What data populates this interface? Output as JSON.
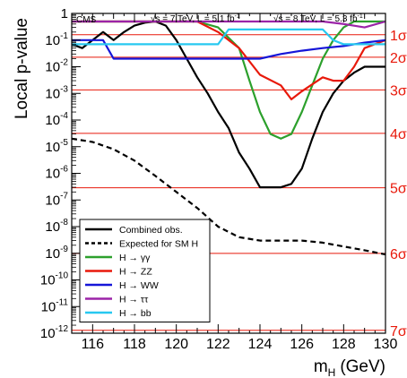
{
  "chart_data": {
    "type": "line",
    "header_left": "CMS",
    "header_7tev": "√s = 7 TeV, L = 5.1 fb",
    "header_8tev": "√s = 8 TeV, L = 5.3 fb",
    "header_sup": "-1",
    "xlabel_main": "m",
    "xlabel_sub": "H",
    "xlabel_unit": "(GeV)",
    "ylabel": "Local p-value",
    "xlim": [
      115,
      130
    ],
    "ylog": true,
    "ylim_exp": [
      -12,
      0
    ],
    "x_ticks": [
      116,
      118,
      120,
      122,
      124,
      126,
      128,
      130
    ],
    "y_ticks": [
      {
        "exp": 0,
        "label": "1"
      },
      {
        "exp": -1,
        "label": "10"
      },
      {
        "exp": -2,
        "label": "10"
      },
      {
        "exp": -3,
        "label": "10"
      },
      {
        "exp": -4,
        "label": "10"
      },
      {
        "exp": -5,
        "label": "10"
      },
      {
        "exp": -6,
        "label": "10"
      },
      {
        "exp": -7,
        "label": "10"
      },
      {
        "exp": -8,
        "label": "10"
      },
      {
        "exp": -9,
        "label": "10"
      },
      {
        "exp": -10,
        "label": "10"
      },
      {
        "exp": -11,
        "label": "10"
      },
      {
        "exp": -12,
        "label": "10"
      }
    ],
    "sigma_lines": [
      {
        "label": "1σ",
        "p": 0.1587
      },
      {
        "label": "2σ",
        "p": 0.02275
      },
      {
        "label": "3σ",
        "p": 0.00135
      },
      {
        "label": "4σ",
        "p": 3.17e-05
      },
      {
        "label": "5σ",
        "p": 2.87e-07
      },
      {
        "label": "6σ",
        "p": 9.87e-10
      },
      {
        "label": "7σ",
        "p": 1.28e-12
      }
    ],
    "legend_position": "bottom-left",
    "series": [
      {
        "name": "Combined obs.",
        "color": "#000000",
        "dash": "",
        "x": [
          115,
          115.5,
          116,
          116.5,
          117,
          117.5,
          118,
          118.5,
          119,
          119.5,
          120,
          120.5,
          121,
          121.5,
          122,
          122.5,
          123,
          123.5,
          124,
          124.5,
          125,
          125.5,
          126,
          126.5,
          127,
          127.5,
          128,
          128.5,
          129,
          129.5,
          130
        ],
        "y": [
          0.07,
          0.05,
          0.1,
          0.2,
          0.1,
          0.2,
          0.35,
          0.45,
          0.5,
          0.35,
          0.1,
          0.02,
          0.004,
          0.001,
          0.0002,
          5e-05,
          6e-06,
          1.5e-06,
          3e-07,
          3e-07,
          3e-07,
          4e-07,
          1.5e-06,
          2e-05,
          0.0002,
          0.001,
          0.003,
          0.006,
          0.01,
          0.01,
          0.01
        ]
      },
      {
        "name": "Expected for SM H",
        "color": "#000000",
        "dash": "6,4",
        "x": [
          115,
          116,
          117,
          118,
          119,
          120,
          121,
          122,
          123,
          124,
          125,
          126,
          127,
          128,
          129,
          130
        ],
        "y": [
          2e-05,
          1.5e-05,
          8e-06,
          3e-06,
          8e-07,
          2e-07,
          5e-08,
          1e-08,
          4e-09,
          3e-09,
          3e-09,
          3e-09,
          2.5e-09,
          1.8e-09,
          1.3e-09,
          9e-10
        ]
      },
      {
        "name": "H → γγ",
        "color": "#2ca02c",
        "dash": "",
        "x": [
          115,
          116,
          117,
          118,
          119,
          120,
          121,
          122,
          123,
          123.5,
          124,
          124.5,
          125,
          125.5,
          126,
          126.5,
          127,
          127.5,
          128,
          128.5,
          129,
          130
        ],
        "y": [
          0.5,
          0.5,
          0.5,
          0.5,
          0.5,
          0.5,
          0.5,
          0.3,
          0.05,
          0.003,
          0.0002,
          3e-05,
          2e-05,
          3e-05,
          0.0002,
          0.002,
          0.02,
          0.1,
          0.3,
          0.5,
          0.5,
          0.5
        ]
      },
      {
        "name": "H → ZZ",
        "color": "#e8190b",
        "dash": "",
        "x": [
          115,
          116,
          117,
          118,
          119,
          120,
          121,
          122,
          123,
          124,
          125,
          125.5,
          126,
          127,
          127.5,
          128,
          128.5,
          129,
          130
        ],
        "y": [
          0.5,
          0.5,
          0.5,
          0.5,
          0.5,
          0.5,
          0.5,
          0.2,
          0.05,
          0.005,
          0.002,
          0.0006,
          0.0012,
          0.004,
          0.003,
          0.003,
          0.01,
          0.05,
          0.1
        ]
      },
      {
        "name": "H → WW",
        "color": "#1515d8",
        "dash": "",
        "x": [
          115,
          116,
          116.5,
          117,
          118,
          119,
          120,
          121,
          122,
          123,
          124,
          125,
          126,
          127,
          128,
          129,
          130
        ],
        "y": [
          0.1,
          0.1,
          0.1,
          0.02,
          0.02,
          0.02,
          0.02,
          0.02,
          0.02,
          0.02,
          0.02,
          0.03,
          0.04,
          0.05,
          0.06,
          0.08,
          0.1
        ]
      },
      {
        "name": "H → ττ",
        "color": "#9b24a8",
        "dash": "",
        "x": [
          115,
          117,
          119,
          121,
          123,
          125,
          126,
          127,
          128,
          129,
          130
        ],
        "y": [
          0.5,
          0.5,
          0.5,
          0.5,
          0.5,
          0.5,
          0.5,
          0.5,
          0.4,
          0.3,
          0.5
        ]
      },
      {
        "name": "H → bb",
        "color": "#27c8f0",
        "dash": "",
        "x": [
          115,
          116,
          117,
          118,
          119,
          120,
          121,
          122,
          122.5,
          123,
          124,
          125,
          126,
          127,
          127.5,
          128,
          129,
          130
        ],
        "y": [
          0.07,
          0.07,
          0.07,
          0.07,
          0.07,
          0.07,
          0.07,
          0.07,
          0.25,
          0.25,
          0.25,
          0.25,
          0.25,
          0.25,
          0.1,
          0.07,
          0.07,
          0.07
        ]
      }
    ]
  }
}
